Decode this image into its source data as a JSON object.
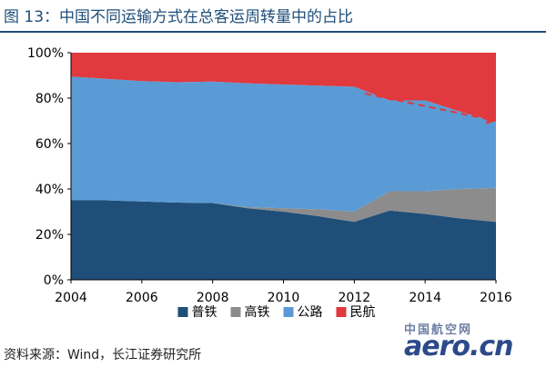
{
  "title": "图 13：中国不同运输方式在总客运周转量中的占比",
  "source": "资料来源：Wind，长江证券研究所",
  "watermark": {
    "line1": "中国航空网",
    "line2": "aero.cn"
  },
  "colors": {
    "title": "#1f4e79",
    "普铁": "#1f4e79",
    "高铁": "#8c8c8c",
    "公路": "#5b9bd5",
    "民航": "#e0393e",
    "arrow": "#e0393e"
  },
  "chart_data": {
    "type": "area",
    "stacked": true,
    "title": "",
    "xlabel": "",
    "ylabel": "",
    "x": [
      2004,
      2005,
      2006,
      2007,
      2008,
      2009,
      2010,
      2011,
      2012,
      2013,
      2014,
      2015,
      2016
    ],
    "xticks": [
      "2004",
      "2006",
      "2008",
      "2010",
      "2012",
      "2014",
      "2016"
    ],
    "xlim": [
      2004,
      2016
    ],
    "ylim": [
      0,
      100
    ],
    "yticks": [
      "0%",
      "20%",
      "40%",
      "60%",
      "80%",
      "100%"
    ],
    "grid": false,
    "legend_position": "bottom",
    "series": [
      {
        "name": "普铁",
        "values": [
          35.0,
          35.0,
          34.5,
          34.0,
          33.8,
          31.5,
          30.0,
          28.0,
          25.5,
          30.5,
          29.0,
          27.0,
          25.5
        ]
      },
      {
        "name": "高铁",
        "values": [
          0.0,
          0.0,
          0.0,
          0.0,
          0.0,
          0.5,
          1.5,
          3.0,
          4.5,
          8.5,
          10.0,
          13.0,
          15.0
        ]
      },
      {
        "name": "公路",
        "values": [
          54.5,
          53.5,
          53.0,
          53.0,
          53.5,
          54.5,
          54.5,
          54.5,
          55.0,
          40.0,
          40.0,
          34.0,
          29.0
        ]
      },
      {
        "name": "民航",
        "values": [
          10.5,
          11.5,
          12.5,
          13.0,
          12.7,
          13.5,
          14.0,
          14.5,
          15.0,
          21.0,
          21.0,
          26.0,
          30.5
        ]
      }
    ],
    "annotations": [
      {
        "type": "dashed-arrow",
        "from": {
          "x": 2012.3,
          "y": 82
        },
        "to": {
          "x": 2016,
          "y": 70
        }
      }
    ]
  }
}
